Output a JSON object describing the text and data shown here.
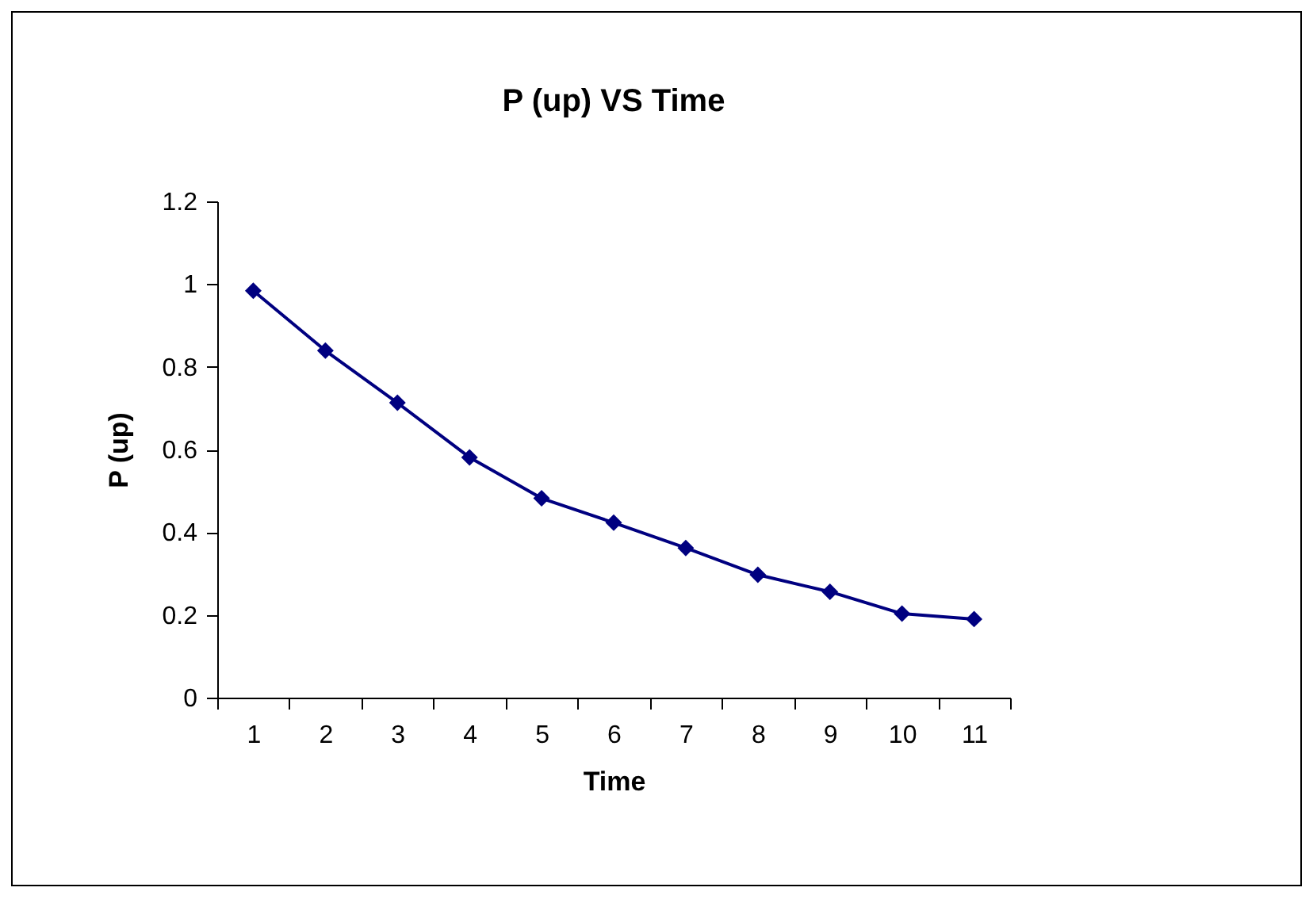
{
  "chart_data": {
    "type": "line",
    "title": "P (up) VS Time",
    "xlabel": "Time",
    "ylabel": "P (up)",
    "categories": [
      "1",
      "2",
      "3",
      "4",
      "5",
      "6",
      "7",
      "8",
      "9",
      "10",
      "11"
    ],
    "series": [
      {
        "color": "#000080",
        "values": [
          0.984,
          0.839,
          0.713,
          0.581,
          0.482,
          0.423,
          0.362,
          0.297,
          0.256,
          0.203,
          0.19
        ]
      }
    ],
    "ylim": [
      0,
      1.2
    ],
    "yticks": [
      0,
      0.2,
      0.4,
      0.6,
      0.8,
      1,
      1.2
    ],
    "grid": false,
    "marker": "diamond",
    "line_style": "solid"
  }
}
